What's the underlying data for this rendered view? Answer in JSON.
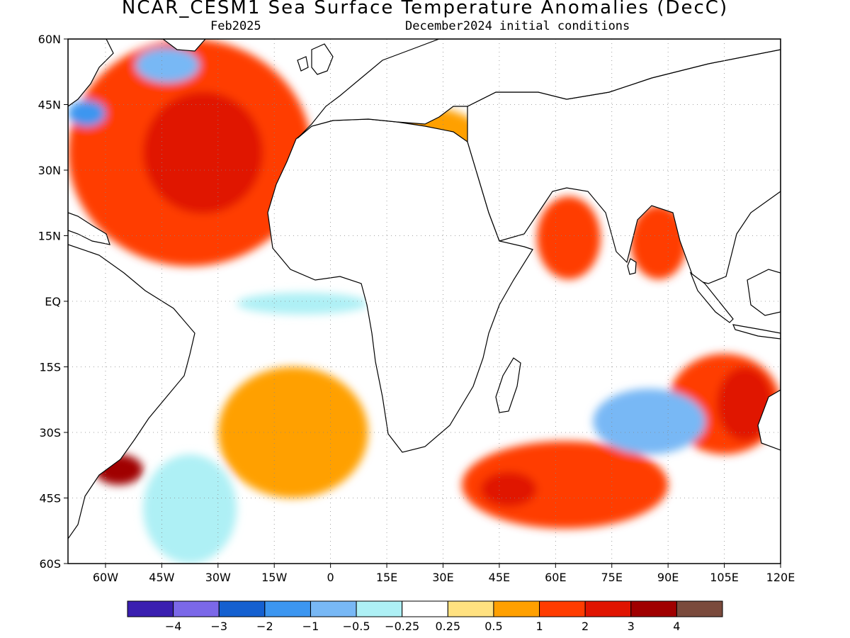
{
  "title": "NCAR_CESM1 Sea Surface Temperature Anomalies (DecC)",
  "subtitle_left": "Feb2025",
  "subtitle_right": "December2024 initial conditions",
  "map": {
    "lon_range": [
      -70,
      120
    ],
    "lat_range": [
      -60,
      60
    ],
    "ocean_color": "#ffffff",
    "land_outline_color": "#000000",
    "grid": "dotted"
  },
  "axes": {
    "lat_ticks": [
      {
        "value": 60,
        "label": "60N"
      },
      {
        "value": 45,
        "label": "45N"
      },
      {
        "value": 30,
        "label": "30N"
      },
      {
        "value": 15,
        "label": "15N"
      },
      {
        "value": 0,
        "label": "EQ"
      },
      {
        "value": -15,
        "label": "15S"
      },
      {
        "value": -30,
        "label": "30S"
      },
      {
        "value": -45,
        "label": "45S"
      },
      {
        "value": -60,
        "label": "60S"
      }
    ],
    "lon_ticks": [
      {
        "value": -60,
        "label": "60W"
      },
      {
        "value": -45,
        "label": "45W"
      },
      {
        "value": -30,
        "label": "30W"
      },
      {
        "value": -15,
        "label": "15W"
      },
      {
        "value": 0,
        "label": "0"
      },
      {
        "value": 15,
        "label": "15E"
      },
      {
        "value": 30,
        "label": "30E"
      },
      {
        "value": 45,
        "label": "45E"
      },
      {
        "value": 60,
        "label": "60E"
      },
      {
        "value": 75,
        "label": "75E"
      },
      {
        "value": 90,
        "label": "90E"
      },
      {
        "value": 105,
        "label": "105E"
      },
      {
        "value": 120,
        "label": "120E"
      }
    ]
  },
  "colorbar": {
    "colors": [
      "#3a1fb0",
      "#7b68e8",
      "#1560d0",
      "#3c96f0",
      "#78b8f5",
      "#aef0f5",
      "#ffffff",
      "#ffe180",
      "#ffa000",
      "#ff3c00",
      "#e01400",
      "#a00000",
      "#7a4a3c"
    ],
    "labels": [
      "−4",
      "−3",
      "−2",
      "−1",
      "−0.5",
      "−0.25",
      "0.25",
      "0.5",
      "1",
      "2",
      "3",
      "4"
    ]
  },
  "anomaly_regions": [
    {
      "name": "north-atlantic-subtropical",
      "lon": [
        -70,
        -5
      ],
      "lat": [
        8,
        60
      ],
      "value": 1.0
    },
    {
      "name": "north-atlantic-core",
      "lon": [
        -50,
        -18
      ],
      "lat": [
        20,
        48
      ],
      "value": 2.0
    },
    {
      "name": "labrador-cold",
      "lon": [
        -52,
        -35
      ],
      "lat": [
        50,
        58
      ],
      "value": -1.0
    },
    {
      "name": "nova-scotia-cold",
      "lon": [
        -70,
        -60
      ],
      "lat": [
        40,
        46
      ],
      "value": -2.0
    },
    {
      "name": "mediterranean",
      "lon": [
        0,
        40
      ],
      "lat": [
        32,
        45
      ],
      "value": 0.5
    },
    {
      "name": "arabian-sea",
      "lon": [
        55,
        72
      ],
      "lat": [
        5,
        24
      ],
      "value": 1.0
    },
    {
      "name": "bay-of-bengal",
      "lon": [
        80,
        95
      ],
      "lat": [
        5,
        22
      ],
      "value": 1.0
    },
    {
      "name": "south-indian-warm",
      "lon": [
        35,
        90
      ],
      "lat": [
        -52,
        -32
      ],
      "value": 1.0
    },
    {
      "name": "south-indian-core",
      "lon": [
        40,
        55
      ],
      "lat": [
        -47,
        -39
      ],
      "value": 2.0
    },
    {
      "name": "south-atlantic-warm",
      "lon": [
        -30,
        10
      ],
      "lat": [
        -45,
        -15
      ],
      "value": 0.5
    },
    {
      "name": "west-australia-warm",
      "lon": [
        90,
        120
      ],
      "lat": [
        -35,
        -12
      ],
      "value": 1.0
    },
    {
      "name": "west-australia-core",
      "lon": [
        103,
        118
      ],
      "lat": [
        -32,
        -15
      ],
      "value": 2.0
    },
    {
      "name": "south-indian-cold",
      "lon": [
        70,
        100
      ],
      "lat": [
        -35,
        -20
      ],
      "value": -1.0
    },
    {
      "name": "patagonia-warm",
      "lon": [
        -63,
        -50
      ],
      "lat": [
        -42,
        -35
      ],
      "value": 3.0
    },
    {
      "name": "southwest-atlantic-cold",
      "lon": [
        -50,
        -25
      ],
      "lat": [
        -60,
        -35
      ],
      "value": -0.5
    },
    {
      "name": "gulf-of-guinea-cold",
      "lon": [
        -25,
        10
      ],
      "lat": [
        -3,
        2
      ],
      "value": -0.5
    }
  ]
}
